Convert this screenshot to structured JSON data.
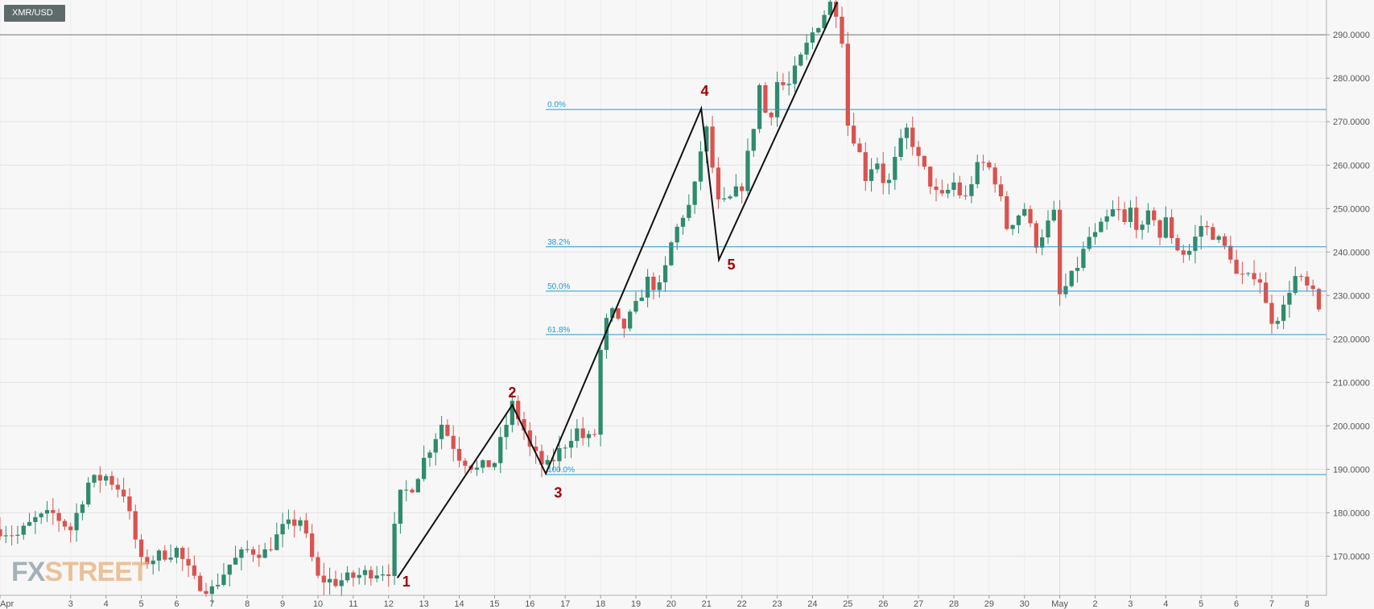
{
  "chart_data": {
    "type": "candlestick",
    "symbol": "XMR/USD",
    "watermark": "FXSTREET",
    "ylim": [
      161,
      298
    ],
    "y_ticks": [
      170,
      180,
      190,
      200,
      210,
      220,
      230,
      240,
      250,
      260,
      270,
      280,
      290
    ],
    "y_tick_labels": [
      "170.0000",
      "180.0000",
      "190.0000",
      "200.0000",
      "210.0000",
      "220.0000",
      "230.0000",
      "240.0000",
      "250.0000",
      "260.0000",
      "270.0000",
      "280.0000",
      "290.0000"
    ],
    "x_ticks": [
      {
        "label": "Apr",
        "day": 1
      },
      {
        "label": "3",
        "day": 3
      },
      {
        "label": "4",
        "day": 4
      },
      {
        "label": "5",
        "day": 5
      },
      {
        "label": "6",
        "day": 6
      },
      {
        "label": "7",
        "day": 7
      },
      {
        "label": "8",
        "day": 8
      },
      {
        "label": "9",
        "day": 9
      },
      {
        "label": "10",
        "day": 10
      },
      {
        "label": "11",
        "day": 11
      },
      {
        "label": "12",
        "day": 12
      },
      {
        "label": "13",
        "day": 13
      },
      {
        "label": "14",
        "day": 14
      },
      {
        "label": "15",
        "day": 15
      },
      {
        "label": "16",
        "day": 16
      },
      {
        "label": "17",
        "day": 17
      },
      {
        "label": "18",
        "day": 18
      },
      {
        "label": "19",
        "day": 19
      },
      {
        "label": "20",
        "day": 20
      },
      {
        "label": "21",
        "day": 21
      },
      {
        "label": "22",
        "day": 22
      },
      {
        "label": "23",
        "day": 23
      },
      {
        "label": "24",
        "day": 24
      },
      {
        "label": "25",
        "day": 25
      },
      {
        "label": "26",
        "day": 26
      },
      {
        "label": "27",
        "day": 27
      },
      {
        "label": "28",
        "day": 28
      },
      {
        "label": "29",
        "day": 29
      },
      {
        "label": "30",
        "day": 30
      },
      {
        "label": "May",
        "day": 31
      },
      {
        "label": "2",
        "day": 32
      },
      {
        "label": "3",
        "day": 33
      },
      {
        "label": "4",
        "day": 34
      },
      {
        "label": "5",
        "day": 35
      },
      {
        "label": "6",
        "day": 36
      },
      {
        "label": "7",
        "day": 37
      },
      {
        "label": "8",
        "day": 38
      }
    ],
    "x_range_days": [
      1.0,
      38.55
    ],
    "candles_per_day": 6,
    "colors": {
      "up": "#2e8b6e",
      "down": "#d9534f",
      "fib": "#1e9bd7",
      "wave_line": "#111111",
      "wave_label": "#a00000",
      "axis_text": "#555555",
      "badge_bg": "#5f6b6b"
    },
    "horizontal_line": {
      "value": 290,
      "color": "#777777"
    },
    "fib_levels": [
      {
        "label": "0.0%",
        "value": 272.8
      },
      {
        "label": "38.2%",
        "value": 241.2
      },
      {
        "label": "50.0%",
        "value": 231.0
      },
      {
        "label": "61.8%",
        "value": 221.0
      },
      {
        "label": "100.0%",
        "value": 188.8
      }
    ],
    "fib_start_day": 16.45,
    "wave_path": [
      {
        "day": 12.25,
        "value": 165.0
      },
      {
        "day": 15.5,
        "value": 204.8
      },
      {
        "day": 16.45,
        "value": 189.0
      },
      {
        "day": 20.85,
        "value": 273.0
      },
      {
        "day": 21.35,
        "value": 238.2
      },
      {
        "day": 24.7,
        "value": 297.5
      }
    ],
    "wave_labels": [
      {
        "label": "1",
        "day": 12.5,
        "value": 163.0
      },
      {
        "label": "2",
        "day": 15.5,
        "value": 206.5
      },
      {
        "label": "3",
        "day": 16.8,
        "value": 183.5
      },
      {
        "label": "4",
        "day": 20.95,
        "value": 276.0
      },
      {
        "label": "5",
        "day": 21.7,
        "value": 236.0
      }
    ],
    "closes": [
      [
        1.0,
        176.2
      ],
      [
        1.5,
        174.8
      ],
      [
        2.0,
        178.4
      ],
      [
        2.5,
        179.7
      ],
      [
        3.0,
        176.2
      ],
      [
        3.5,
        186.9
      ],
      [
        4.0,
        188.4
      ],
      [
        4.5,
        184.6
      ],
      [
        5.0,
        168.4
      ],
      [
        5.5,
        170.1
      ],
      [
        6.0,
        171.5
      ],
      [
        6.5,
        164.2
      ],
      [
        7.0,
        162.3
      ],
      [
        7.5,
        168.1
      ],
      [
        8.0,
        171.4
      ],
      [
        8.5,
        170.9
      ],
      [
        9.0,
        176.2
      ],
      [
        9.5,
        178.6
      ],
      [
        10.0,
        164.8
      ],
      [
        10.5,
        164.1
      ],
      [
        11.0,
        165.2
      ],
      [
        11.5,
        166.4
      ],
      [
        12.0,
        166.8
      ],
      [
        12.3,
        183.6
      ],
      [
        12.7,
        186.4
      ],
      [
        13.0,
        192.3
      ],
      [
        13.5,
        200.5
      ],
      [
        14.0,
        193.1
      ],
      [
        14.5,
        189.9
      ],
      [
        15.0,
        191.7
      ],
      [
        15.5,
        204.8
      ],
      [
        15.8,
        199.8
      ],
      [
        16.0,
        194.7
      ],
      [
        16.45,
        190.1
      ],
      [
        16.9,
        194.8
      ],
      [
        17.3,
        199.3
      ],
      [
        17.6,
        196.4
      ],
      [
        17.9,
        198.7
      ],
      [
        18.0,
        217.2
      ],
      [
        18.25,
        227.1
      ],
      [
        18.6,
        221.8
      ],
      [
        19.0,
        227.3
      ],
      [
        19.3,
        233.5
      ],
      [
        19.7,
        231.4
      ],
      [
        20.0,
        241.9
      ],
      [
        20.3,
        248.3
      ],
      [
        20.6,
        251.5
      ],
      [
        20.85,
        264.3
      ],
      [
        21.0,
        267.9
      ],
      [
        21.35,
        250.1
      ],
      [
        21.7,
        252.3
      ],
      [
        22.0,
        255.4
      ],
      [
        22.3,
        267.5
      ],
      [
        22.5,
        278.2
      ],
      [
        22.75,
        269.1
      ],
      [
        23.0,
        279.2
      ],
      [
        23.3,
        277.7
      ],
      [
        23.6,
        283.3
      ],
      [
        24.0,
        290.4
      ],
      [
        24.3,
        294.6
      ],
      [
        24.55,
        297.8
      ],
      [
        24.8,
        293.4
      ],
      [
        25.0,
        269.4
      ],
      [
        25.25,
        265.1
      ],
      [
        25.5,
        257.4
      ],
      [
        25.8,
        261.8
      ],
      [
        26.1,
        254.1
      ],
      [
        26.4,
        262.8
      ],
      [
        26.7,
        268.6
      ],
      [
        27.0,
        261.1
      ],
      [
        27.3,
        256.6
      ],
      [
        27.6,
        251.6
      ],
      [
        28.0,
        255.9
      ],
      [
        28.3,
        251.4
      ],
      [
        28.6,
        258.9
      ],
      [
        28.9,
        260.7
      ],
      [
        29.2,
        256.3
      ],
      [
        29.5,
        245.8
      ],
      [
        29.8,
        248.5
      ],
      [
        30.0,
        250.2
      ],
      [
        30.3,
        241.8
      ],
      [
        30.6,
        245.6
      ],
      [
        30.9,
        249.4
      ],
      [
        31.0,
        229.9
      ],
      [
        31.3,
        233.5
      ],
      [
        31.6,
        238.7
      ],
      [
        31.9,
        244.7
      ],
      [
        32.0,
        243.6
      ],
      [
        32.3,
        247.1
      ],
      [
        32.6,
        250.3
      ],
      [
        32.9,
        245.2
      ],
      [
        33.0,
        249.8
      ],
      [
        33.3,
        244.1
      ],
      [
        33.6,
        250.2
      ],
      [
        33.9,
        241.6
      ],
      [
        34.0,
        247.1
      ],
      [
        34.3,
        241.2
      ],
      [
        34.6,
        239.1
      ],
      [
        34.9,
        244.3
      ],
      [
        35.0,
        246.1
      ],
      [
        35.3,
        244.6
      ],
      [
        35.6,
        241.5
      ],
      [
        35.9,
        238.8
      ],
      [
        36.0,
        234.6
      ],
      [
        36.3,
        233.4
      ],
      [
        36.6,
        236.1
      ],
      [
        36.9,
        225.2
      ],
      [
        37.0,
        224.7
      ],
      [
        37.3,
        226.1
      ],
      [
        37.6,
        234.5
      ],
      [
        37.9,
        232.7
      ],
      [
        38.2,
        229.6
      ],
      [
        38.45,
        223.4
      ]
    ]
  }
}
